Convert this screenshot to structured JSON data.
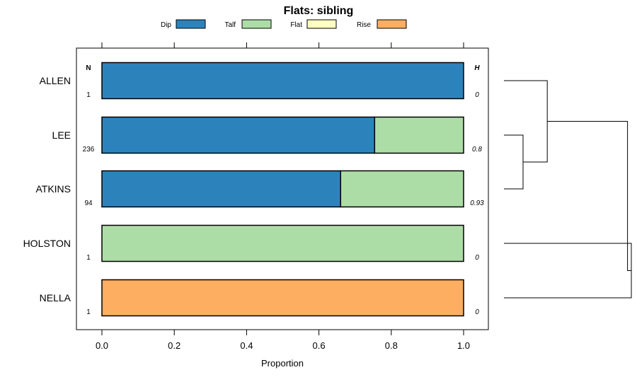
{
  "chart_data": {
    "type": "bar",
    "orientation": "horizontal",
    "stacked": true,
    "title": "Flats: sibling",
    "xlabel": "Proportion",
    "ylabel": "",
    "xlim": [
      0,
      1
    ],
    "x_ticks": [
      "0.0",
      "0.2",
      "0.4",
      "0.6",
      "0.8",
      "1.0"
    ],
    "x_tick_values": [
      0,
      0.2,
      0.4,
      0.6,
      0.8,
      1.0
    ],
    "legend_position": "top",
    "categories": [
      "ALLEN",
      "LEE",
      "ATKINS",
      "HOLSTON",
      "NELLA"
    ],
    "series": [
      {
        "name": "Dip",
        "color": "#2c83bc",
        "values": [
          1.0,
          0.754,
          0.66,
          0.0,
          0.0
        ]
      },
      {
        "name": "Talf",
        "color": "#addda6",
        "values": [
          0.0,
          0.246,
          0.34,
          1.0,
          0.0
        ]
      },
      {
        "name": "Flat",
        "color": "#ffffc2",
        "values": [
          0.0,
          0.0,
          0.0,
          0.0,
          0.0
        ]
      },
      {
        "name": "Rise",
        "color": "#fdae61",
        "values": [
          0.0,
          0.0,
          0.0,
          0.0,
          1.0
        ]
      }
    ],
    "n_header": "N",
    "h_header": "H",
    "n_values": [
      "1",
      "236",
      "94",
      "1",
      "1"
    ],
    "h_values": [
      "0",
      "0.8",
      "0.93",
      "0",
      "0"
    ],
    "dendrogram": {
      "merges": [
        {
          "children": [
            "LEE",
            "ATKINS"
          ],
          "height": 0.15
        },
        {
          "children": [
            "ALLEN",
            "LEE+ATKINS"
          ],
          "height": 0.34
        },
        {
          "children": [
            "HOLSTON",
            "NELLA"
          ],
          "height": 1.0
        },
        {
          "children": [
            "ALLEN+LEE+ATKINS",
            "HOLSTON+NELLA"
          ],
          "height": 0.97
        }
      ]
    }
  }
}
